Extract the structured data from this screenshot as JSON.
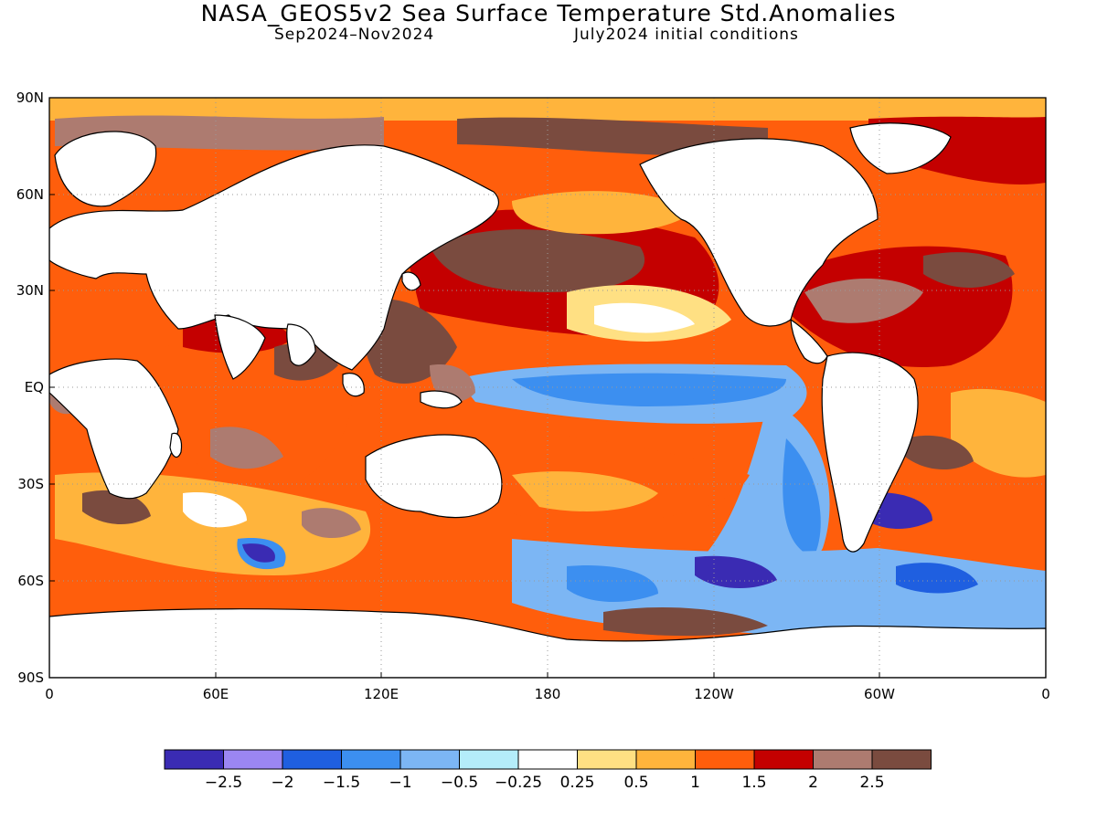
{
  "title": "NASA_GEOS5v2 Sea Surface Temperature Std.Anomalies",
  "subtitle_left": "Sep2024–Nov2024",
  "subtitle_right": "July2024 initial conditions",
  "lat_ticks": [
    "90N",
    "60N",
    "30N",
    "EQ",
    "30S",
    "60S",
    "90S"
  ],
  "lon_ticks": [
    "0",
    "60E",
    "120E",
    "180",
    "120W",
    "60W",
    "0"
  ],
  "colorbar": {
    "labels": [
      "−2.5",
      "−2",
      "−1.5",
      "−1",
      "−0.5",
      "−0.25",
      "0.25",
      "0.5",
      "1",
      "1.5",
      "2",
      "2.5"
    ],
    "colors": [
      "#3a2bb3",
      "#9b86f2",
      "#1f5fe0",
      "#3c8ff0",
      "#7cb6f4",
      "#b4edfa",
      "#ffffff",
      "#ffe083",
      "#ffb43c",
      "#ff5e0c",
      "#c40000",
      "#ad7b70",
      "#7a4b3f"
    ]
  },
  "map_colors": {
    "land": "#ffffff",
    "coast": "#000000",
    "grid": "#9a9a9a"
  }
}
